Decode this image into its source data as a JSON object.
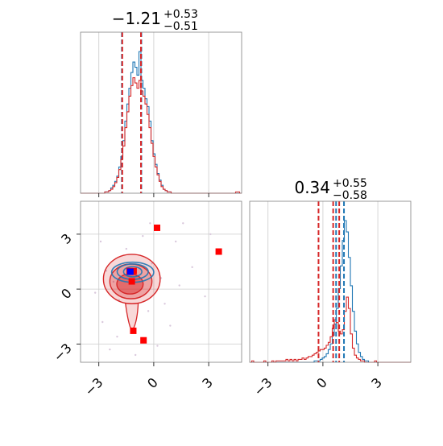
{
  "chart_data": {
    "type": "corner",
    "colors": {
      "series_a": "#1f77b4",
      "series_b": "#d62728",
      "marker_blue": "#0000ff",
      "marker_red": "#ff0000",
      "frame": "#808080",
      "grid": "#cccccc"
    },
    "params": [
      {
        "title_value": "−1.21",
        "title_plus": "+0.53",
        "title_minus": "−0.51"
      },
      {
        "title_value": "0.34",
        "title_plus": "+0.55",
        "title_minus": "−0.58"
      }
    ],
    "axis_range": [
      -4.0,
      4.8
    ],
    "ticks": [
      -3,
      0,
      3
    ],
    "tick_labels": [
      "−3",
      "0",
      "3"
    ],
    "grid": true,
    "hist_x": {
      "bin_edges_start": -4.0,
      "bin_width": 0.11,
      "series_a_counts": [
        0,
        0,
        0,
        0,
        0,
        0,
        0,
        0,
        0,
        0,
        0,
        0,
        1,
        1,
        2,
        4,
        6,
        9,
        13,
        20,
        28,
        40,
        55,
        68,
        80,
        92,
        100,
        96,
        90,
        108,
        86,
        80,
        72,
        66,
        55,
        40,
        30,
        22,
        15,
        10,
        6,
        3,
        2,
        1,
        1,
        0,
        0,
        0,
        0,
        0,
        0,
        0,
        0,
        0,
        0,
        0,
        0,
        0,
        0,
        0,
        0,
        0,
        0,
        0,
        0,
        0,
        0,
        0,
        0,
        0,
        0,
        0,
        0,
        0,
        0,
        0,
        0,
        0,
        0,
        0
      ],
      "series_b_counts": [
        0,
        0,
        0,
        0,
        0,
        0,
        0,
        0,
        0,
        0,
        0,
        0,
        1,
        1,
        2,
        3,
        5,
        8,
        12,
        18,
        26,
        36,
        50,
        62,
        74,
        82,
        88,
        84,
        80,
        86,
        78,
        74,
        68,
        60,
        50,
        38,
        28,
        20,
        14,
        9,
        5,
        3,
        2,
        1,
        1,
        0,
        0,
        0,
        0,
        0,
        0,
        0,
        0,
        0,
        0,
        0,
        0,
        0,
        0,
        0,
        0,
        0,
        0,
        0,
        0,
        0,
        0,
        0,
        0,
        0,
        0,
        0,
        0,
        0,
        0,
        0,
        0,
        1,
        1,
        0
      ],
      "quantiles_a": [
        -1.74,
        -0.68
      ],
      "quantiles_b": [
        -1.72,
        -0.7
      ]
    },
    "hist_y": {
      "bin_edges_start": -4.0,
      "bin_width": 0.11,
      "series_a_counts": [
        0,
        0,
        0,
        0,
        0,
        0,
        0,
        0,
        0,
        0,
        0,
        0,
        0,
        0,
        0,
        0,
        0,
        0,
        0,
        0,
        0,
        0,
        0,
        0,
        0,
        0,
        0,
        0,
        0,
        0,
        0,
        0,
        1,
        1,
        1,
        2,
        3,
        4,
        6,
        9,
        13,
        19,
        27,
        38,
        52,
        68,
        86,
        100,
        92,
        74,
        54,
        36,
        22,
        13,
        7,
        4,
        2,
        1,
        1,
        0,
        0,
        0,
        0,
        0,
        0,
        0,
        0,
        0,
        0,
        0,
        0,
        0,
        0,
        0,
        0,
        0,
        0,
        0,
        0,
        0
      ],
      "series_b_counts": [
        0,
        1,
        0,
        0,
        0,
        0,
        0,
        1,
        0,
        0,
        0,
        1,
        0,
        1,
        1,
        1,
        1,
        1,
        2,
        1,
        2,
        1,
        2,
        1,
        2,
        2,
        3,
        2,
        3,
        4,
        4,
        5,
        6,
        7,
        8,
        9,
        9,
        10,
        12,
        14,
        18,
        24,
        30,
        28,
        22,
        20,
        23,
        36,
        46,
        38,
        20,
        10,
        5,
        3,
        2,
        1,
        1,
        0,
        0,
        0,
        0,
        0,
        1,
        0,
        0,
        0,
        0,
        0,
        0,
        0,
        0,
        0,
        0,
        0,
        0,
        0,
        0,
        0,
        0,
        0
      ],
      "quantiles_a": [
        0.72,
        1.15
      ],
      "quantiles_b": [
        -0.24,
        0.56,
        0.89
      ]
    },
    "scatter_2d": {
      "red_markers": [
        [
          0.18,
          3.35
        ],
        [
          3.55,
          2.05
        ],
        [
          -1.32,
          0.99
        ],
        [
          -1.1,
          0.99
        ],
        [
          -1.2,
          0.42
        ],
        [
          -1.12,
          -2.28
        ],
        [
          -0.56,
          -2.8
        ]
      ],
      "blue_markers": [
        [
          -1.28,
          0.95
        ]
      ],
      "faint_points": [
        [
          -2.2,
          0.4
        ],
        [
          -1.9,
          -0.6
        ],
        [
          -2.6,
          1.0
        ],
        [
          -0.1,
          1.4
        ],
        [
          0.4,
          0.6
        ],
        [
          -2.8,
          -1.8
        ],
        [
          -0.3,
          -1.2
        ],
        [
          1.2,
          2.6
        ],
        [
          2.1,
          1.2
        ],
        [
          -2.0,
          -2.6
        ],
        [
          0.9,
          -2.0
        ],
        [
          -1.5,
          2.2
        ],
        [
          -0.6,
          2.9
        ],
        [
          1.6,
          3.6
        ],
        [
          -3.2,
          -0.2
        ],
        [
          0.2,
          -3.1
        ],
        [
          -2.4,
          -3.3
        ],
        [
          2.8,
          -0.4
        ],
        [
          -1.0,
          -3.6
        ],
        [
          1.4,
          0.2
        ],
        [
          -0.2,
          3.6
        ],
        [
          3.1,
          3.0
        ],
        [
          -2.9,
          2.6
        ],
        [
          0.6,
          -0.8
        ]
      ],
      "red_contours": [
        {
          "cx": -1.3,
          "cy": 0.28,
          "rx": 0.72,
          "ry": 0.55,
          "fill": 0.75
        },
        {
          "cx": -1.25,
          "cy": 0.42,
          "rx": 1.15,
          "ry": 0.95,
          "fill": 0.5
        },
        {
          "cx": -1.2,
          "cy": 0.55,
          "rx": 1.55,
          "ry": 1.35,
          "fill": 0.3
        }
      ],
      "blue_contours": [
        {
          "cx": -1.15,
          "cy": 0.95,
          "rx": 0.5,
          "ry": 0.28
        },
        {
          "cx": -1.15,
          "cy": 0.95,
          "rx": 0.85,
          "ry": 0.42
        },
        {
          "cx": -1.15,
          "cy": 0.92,
          "rx": 1.15,
          "ry": 0.55
        }
      ]
    }
  }
}
